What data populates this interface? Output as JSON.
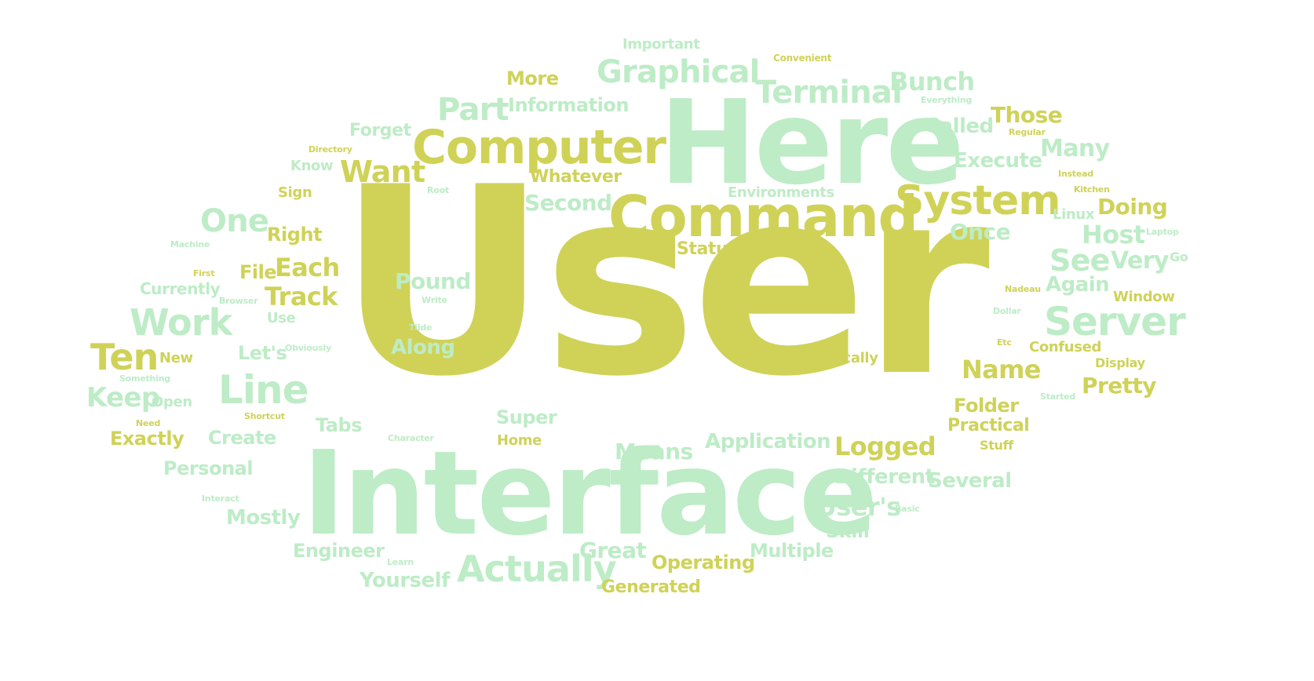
{
  "colors": {
    "olive": "#cfd257",
    "pale_olive": "#dfe08a",
    "mint": "#bdecc6",
    "pale_mint": "#cdf0d2",
    "background": "#ffffff"
  },
  "words": [
    {
      "text": "User",
      "color": "olive"
    },
    {
      "text": "Interface",
      "color": "mint"
    },
    {
      "text": "Here",
      "color": "mint"
    },
    {
      "text": "Command",
      "color": "olive"
    },
    {
      "text": "Computer",
      "color": "olive"
    },
    {
      "text": "System",
      "color": "olive"
    },
    {
      "text": "Line",
      "color": "mint"
    },
    {
      "text": "Server",
      "color": "mint"
    },
    {
      "text": "Actually",
      "color": "mint"
    },
    {
      "text": "Work",
      "color": "mint"
    },
    {
      "text": "Terminal",
      "color": "mint"
    },
    {
      "text": "Graphical",
      "color": "mint"
    },
    {
      "text": "Part",
      "color": "mint"
    },
    {
      "text": "Ten",
      "color": "olive"
    },
    {
      "text": "One",
      "color": "mint"
    },
    {
      "text": "Want",
      "color": "olive"
    },
    {
      "text": "Bunch",
      "color": "mint"
    },
    {
      "text": "Logged",
      "color": "olive"
    },
    {
      "text": "See",
      "color": "mint"
    },
    {
      "text": "Host",
      "color": "mint"
    },
    {
      "text": "Many",
      "color": "mint"
    },
    {
      "text": "Track",
      "color": "olive"
    },
    {
      "text": "Each",
      "color": "olive"
    },
    {
      "text": "Keep",
      "color": "mint"
    },
    {
      "text": "Pound",
      "color": "mint"
    },
    {
      "text": "Name",
      "color": "olive"
    },
    {
      "text": "Means",
      "color": "mint"
    },
    {
      "text": "Very",
      "color": "mint"
    },
    {
      "text": "Pretty",
      "color": "olive"
    },
    {
      "text": "Those",
      "color": "olive"
    },
    {
      "text": "Doing",
      "color": "olive"
    },
    {
      "text": "Second",
      "color": "mint"
    },
    {
      "text": "Application",
      "color": "mint"
    },
    {
      "text": "Great",
      "color": "mint"
    },
    {
      "text": "User's",
      "color": "mint"
    },
    {
      "text": "Once",
      "color": "mint"
    },
    {
      "text": "Execute",
      "color": "mint"
    },
    {
      "text": "Called",
      "color": "mint"
    },
    {
      "text": "Along",
      "color": "mint"
    },
    {
      "text": "Again",
      "color": "mint"
    },
    {
      "text": "Different",
      "color": "mint"
    },
    {
      "text": "Several",
      "color": "mint"
    },
    {
      "text": "Folder",
      "color": "olive"
    },
    {
      "text": "Practical",
      "color": "olive"
    },
    {
      "text": "Operating",
      "color": "olive"
    },
    {
      "text": "Multiple",
      "color": "mint"
    },
    {
      "text": "Yourself",
      "color": "mint"
    },
    {
      "text": "Mostly",
      "color": "mint"
    },
    {
      "text": "Personal",
      "color": "mint"
    },
    {
      "text": "Create",
      "color": "mint"
    },
    {
      "text": "Exactly",
      "color": "olive"
    },
    {
      "text": "Super",
      "color": "mint"
    },
    {
      "text": "Tabs",
      "color": "mint"
    },
    {
      "text": "Engineer",
      "color": "mint"
    },
    {
      "text": "Generated",
      "color": "olive"
    },
    {
      "text": "Information",
      "color": "mint"
    },
    {
      "text": "More",
      "color": "olive"
    },
    {
      "text": "Whatever",
      "color": "olive"
    },
    {
      "text": "Right",
      "color": "olive"
    },
    {
      "text": "File",
      "color": "olive"
    },
    {
      "text": "Let's",
      "color": "mint"
    },
    {
      "text": "Status",
      "color": "olive"
    },
    {
      "text": "Skill",
      "color": "mint"
    },
    {
      "text": "Forget",
      "color": "mint"
    },
    {
      "text": "Important",
      "color": "mint"
    },
    {
      "text": "Environments",
      "color": "mint"
    },
    {
      "text": "Automatically",
      "color": "olive"
    },
    {
      "text": "Confused",
      "color": "olive"
    },
    {
      "text": "Currently",
      "color": "mint"
    },
    {
      "text": "Window",
      "color": "olive"
    },
    {
      "text": "Display",
      "color": "olive"
    },
    {
      "text": "Stuff",
      "color": "olive"
    },
    {
      "text": "Linux",
      "color": "mint"
    },
    {
      "text": "Home",
      "color": "olive"
    },
    {
      "text": "Know",
      "color": "mint"
    },
    {
      "text": "Sign",
      "color": "olive"
    },
    {
      "text": "New",
      "color": "olive"
    },
    {
      "text": "Open",
      "color": "mint"
    },
    {
      "text": "Use",
      "color": "mint"
    },
    {
      "text": "Go",
      "color": "mint"
    },
    {
      "text": "Convenient",
      "color": "olive"
    },
    {
      "text": "Everything",
      "color": "mint"
    },
    {
      "text": "Regular",
      "color": "olive"
    },
    {
      "text": "Instead",
      "color": "olive"
    },
    {
      "text": "Kitchen",
      "color": "olive"
    },
    {
      "text": "Laptop",
      "color": "mint"
    },
    {
      "text": "Nadeau",
      "color": "olive"
    },
    {
      "text": "Dollar",
      "color": "mint"
    },
    {
      "text": "Etc",
      "color": "olive"
    },
    {
      "text": "Started",
      "color": "mint"
    },
    {
      "text": "Basic",
      "color": "mint"
    },
    {
      "text": "Directory",
      "color": "olive"
    },
    {
      "text": "Root",
      "color": "mint"
    },
    {
      "text": "Machine",
      "color": "mint"
    },
    {
      "text": "First",
      "color": "olive"
    },
    {
      "text": "Browser",
      "color": "mint"
    },
    {
      "text": "Write",
      "color": "mint"
    },
    {
      "text": "Tilde",
      "color": "mint"
    },
    {
      "text": "Obviously",
      "color": "mint"
    },
    {
      "text": "Something",
      "color": "mint"
    },
    {
      "text": "Shortcut",
      "color": "olive"
    },
    {
      "text": "Need",
      "color": "olive"
    },
    {
      "text": "Character",
      "color": "mint"
    },
    {
      "text": "Interact",
      "color": "mint"
    },
    {
      "text": "Learn",
      "color": "mint"
    }
  ]
}
